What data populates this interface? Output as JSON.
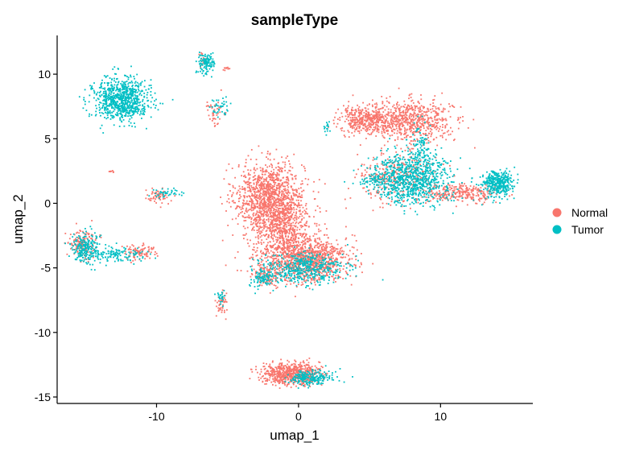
{
  "chart_data": {
    "type": "scatter",
    "title": "sampleType",
    "xlabel": "umap_1",
    "ylabel": "umap_2",
    "xlim": [
      -17,
      16.5
    ],
    "ylim": [
      -15.5,
      13
    ],
    "xticks": [
      {
        "value": -10,
        "label": "-10"
      },
      {
        "value": 0,
        "label": "0"
      },
      {
        "value": 10,
        "label": "10"
      }
    ],
    "yticks": [
      {
        "value": 10,
        "label": "10"
      },
      {
        "value": 5,
        "label": "5"
      },
      {
        "value": 0,
        "label": "0"
      },
      {
        "value": -5,
        "label": "-5"
      },
      {
        "value": -10,
        "label": "-10"
      },
      {
        "value": -15,
        "label": "-15"
      }
    ],
    "grid": false,
    "legend": {
      "placement": "right"
    },
    "series": [
      {
        "name": "Normal",
        "color": "#F8766D",
        "clusters": [
          {
            "cx": -2.0,
            "cy": 0.5,
            "sx": 1.2,
            "sy": 1.3,
            "n": 1200
          },
          {
            "cx": -1.2,
            "cy": -2.0,
            "sx": 1.0,
            "sy": 1.0,
            "n": 500
          },
          {
            "cx": 0.5,
            "cy": -4.3,
            "sx": 1.5,
            "sy": 0.9,
            "n": 1100
          },
          {
            "cx": -2.2,
            "cy": -5.5,
            "sx": 0.5,
            "sy": 0.5,
            "n": 110
          },
          {
            "cx": -5.4,
            "cy": -7.8,
            "sx": 0.2,
            "sy": 0.5,
            "n": 45
          },
          {
            "cx": -0.5,
            "cy": -13.2,
            "sx": 1.0,
            "sy": 0.4,
            "n": 700
          },
          {
            "cx": 4.8,
            "cy": 6.5,
            "sx": 1.0,
            "sy": 0.5,
            "n": 420
          },
          {
            "cx": 8.0,
            "cy": 6.4,
            "sx": 1.4,
            "sy": 0.8,
            "n": 650
          },
          {
            "cx": 7.0,
            "cy": 2.0,
            "sx": 1.4,
            "sy": 1.0,
            "n": 320
          },
          {
            "cx": 11.5,
            "cy": 0.8,
            "sx": 1.2,
            "sy": 0.35,
            "n": 280
          },
          {
            "cx": -15.2,
            "cy": -3.2,
            "sx": 0.5,
            "sy": 0.6,
            "n": 160
          },
          {
            "cx": -11.3,
            "cy": -3.8,
            "sx": 0.6,
            "sy": 0.3,
            "n": 90
          },
          {
            "cx": -10.0,
            "cy": 0.5,
            "sx": 0.45,
            "sy": 0.3,
            "n": 60
          },
          {
            "cx": -5.9,
            "cy": 7.0,
            "sx": 0.3,
            "sy": 0.5,
            "n": 40
          },
          {
            "cx": -6.7,
            "cy": 11.0,
            "sx": 0.2,
            "sy": 0.3,
            "n": 20
          },
          {
            "cx": -13.2,
            "cy": 2.5,
            "sx": 0.1,
            "sy": 0.1,
            "n": 8
          },
          {
            "cx": -5.0,
            "cy": 10.4,
            "sx": 0.15,
            "sy": 0.08,
            "n": 10
          }
        ]
      },
      {
        "name": "Tumor",
        "color": "#00BFC4",
        "clusters": [
          {
            "cx": -12.5,
            "cy": 8.0,
            "sx": 1.0,
            "sy": 0.8,
            "n": 800
          },
          {
            "cx": -6.5,
            "cy": 10.8,
            "sx": 0.3,
            "sy": 0.4,
            "n": 120
          },
          {
            "cx": 8.0,
            "cy": 2.0,
            "sx": 1.3,
            "sy": 1.0,
            "n": 850
          },
          {
            "cx": 14.0,
            "cy": 1.5,
            "sx": 0.6,
            "sy": 0.5,
            "n": 380
          },
          {
            "cx": 5.7,
            "cy": 1.8,
            "sx": 0.7,
            "sy": 0.4,
            "n": 100
          },
          {
            "cx": 8.6,
            "cy": 4.5,
            "sx": 0.3,
            "sy": 0.8,
            "n": 70
          },
          {
            "cx": 0.3,
            "cy": -5.0,
            "sx": 1.5,
            "sy": 0.6,
            "n": 450
          },
          {
            "cx": -15.0,
            "cy": -3.5,
            "sx": 0.5,
            "sy": 0.6,
            "n": 220
          },
          {
            "cx": -13.0,
            "cy": -4.0,
            "sx": 1.0,
            "sy": 0.3,
            "n": 120
          },
          {
            "cx": -9.3,
            "cy": 0.8,
            "sx": 0.5,
            "sy": 0.2,
            "n": 40
          },
          {
            "cx": -2.5,
            "cy": -5.8,
            "sx": 0.5,
            "sy": 0.4,
            "n": 90
          },
          {
            "cx": -5.5,
            "cy": -7.3,
            "sx": 0.2,
            "sy": 0.3,
            "n": 25
          },
          {
            "cx": -5.5,
            "cy": 7.4,
            "sx": 0.3,
            "sy": 0.4,
            "n": 40
          },
          {
            "cx": 0.8,
            "cy": -13.5,
            "sx": 0.8,
            "sy": 0.3,
            "n": 220
          },
          {
            "cx": 2.0,
            "cy": 5.8,
            "sx": 0.1,
            "sy": 0.3,
            "n": 15
          }
        ]
      }
    ]
  }
}
